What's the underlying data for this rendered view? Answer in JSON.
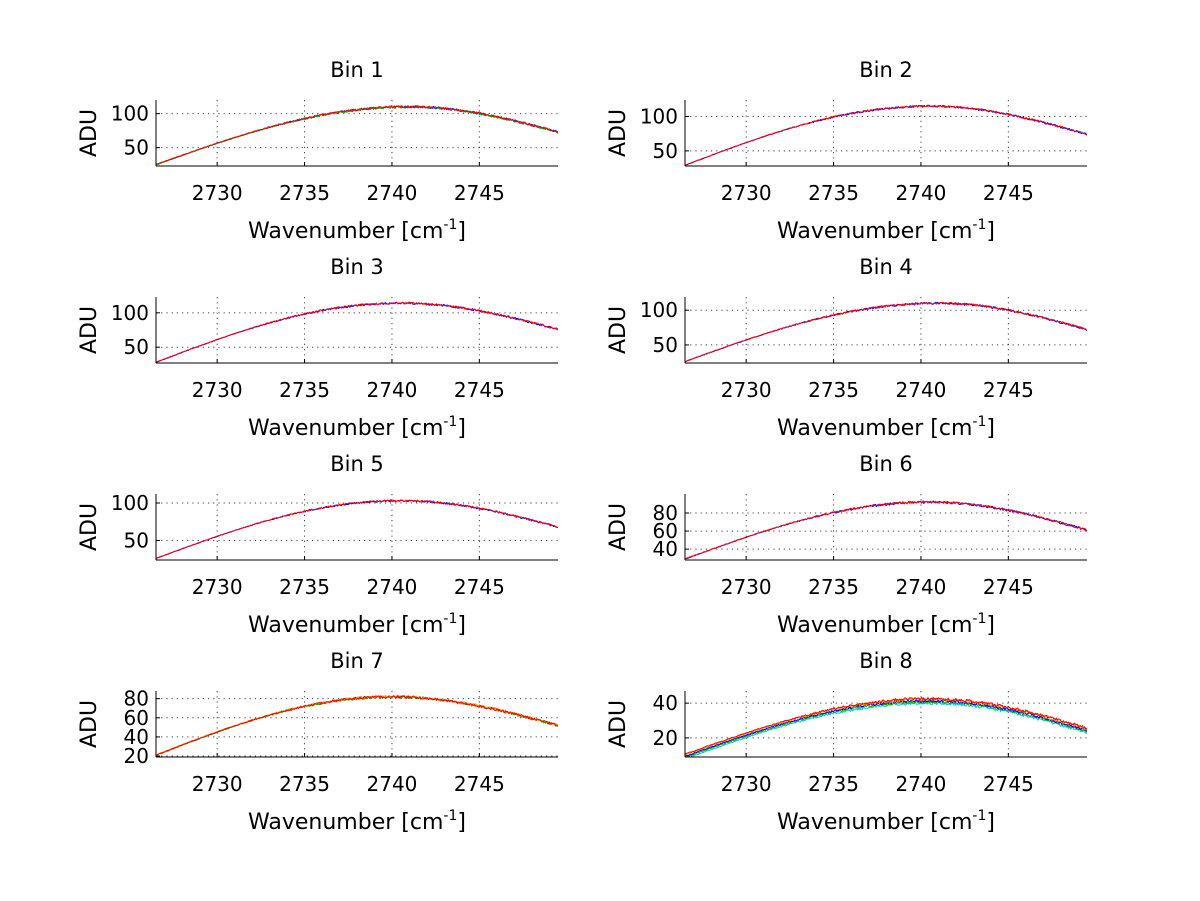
{
  "chart_data": [
    {
      "type": "line",
      "title": "Bin 1",
      "xlabel": "Wavenumber [cm",
      "xlabel_sup": "-1",
      "xlabel_end": "]",
      "ylabel": "ADU",
      "xlim": [
        2726.5,
        2749.5
      ],
      "ylim": [
        23,
        120
      ],
      "xticks": [
        2730,
        2735,
        2740,
        2745
      ],
      "yticks": [
        50,
        100
      ],
      "grid": true,
      "curve": {
        "x0": 2726.5,
        "x_peak": 2741,
        "x1": 2749.5,
        "y0": 25,
        "y_peak": 110,
        "y1": 73,
        "noise": 1.6
      },
      "series": [
        {
          "color": "#0000ff",
          "offset": 0.0
        },
        {
          "color": "#00b000",
          "offset": -0.4
        },
        {
          "color": "#ff0000",
          "offset": 0.2
        }
      ]
    },
    {
      "type": "line",
      "title": "Bin 2",
      "xlabel": "Wavenumber [cm",
      "xlabel_sup": "-1",
      "xlabel_end": "]",
      "ylabel": "ADU",
      "xlim": [
        2726.5,
        2749.5
      ],
      "ylim": [
        28,
        124
      ],
      "xticks": [
        2730,
        2735,
        2740,
        2745
      ],
      "yticks": [
        50,
        100
      ],
      "grid": true,
      "curve": {
        "x0": 2726.5,
        "x_peak": 2740.5,
        "x1": 2749.5,
        "y0": 29,
        "y_peak": 115,
        "y1": 74,
        "noise": 1.4
      },
      "series": [
        {
          "color": "#0000ff",
          "offset": 0.0
        },
        {
          "color": "#ff0000",
          "offset": 0.2
        }
      ]
    },
    {
      "type": "line",
      "title": "Bin 3",
      "xlabel": "Wavenumber [cm",
      "xlabel_sup": "-1",
      "xlabel_end": "]",
      "ylabel": "ADU",
      "xlim": [
        2726.5,
        2749.5
      ],
      "ylim": [
        27,
        123
      ],
      "xticks": [
        2730,
        2735,
        2740,
        2745
      ],
      "yticks": [
        50,
        100
      ],
      "grid": true,
      "curve": {
        "x0": 2726.5,
        "x_peak": 2740.5,
        "x1": 2749.5,
        "y0": 28,
        "y_peak": 114,
        "y1": 76,
        "noise": 1.5
      },
      "series": [
        {
          "color": "#0000ff",
          "offset": 0.0
        },
        {
          "color": "#ff0000",
          "offset": 0.2
        }
      ]
    },
    {
      "type": "line",
      "title": "Bin 4",
      "xlabel": "Wavenumber [cm",
      "xlabel_sup": "-1",
      "xlabel_end": "]",
      "ylabel": "ADU",
      "xlim": [
        2726.5,
        2749.5
      ],
      "ylim": [
        24,
        119
      ],
      "xticks": [
        2730,
        2735,
        2740,
        2745
      ],
      "yticks": [
        50,
        100
      ],
      "grid": true,
      "curve": {
        "x0": 2726.5,
        "x_peak": 2741,
        "x1": 2749.5,
        "y0": 26,
        "y_peak": 110,
        "y1": 72,
        "noise": 1.5
      },
      "series": [
        {
          "color": "#0000ff",
          "offset": 0.0
        },
        {
          "color": "#ff0000",
          "offset": 0.2
        }
      ]
    },
    {
      "type": "line",
      "title": "Bin 5",
      "xlabel": "Wavenumber [cm",
      "xlabel_sup": "-1",
      "xlabel_end": "]",
      "ylabel": "ADU",
      "xlim": [
        2726.5,
        2749.5
      ],
      "ylim": [
        24,
        112
      ],
      "xticks": [
        2730,
        2735,
        2740,
        2745
      ],
      "yticks": [
        50,
        100
      ],
      "grid": true,
      "curve": {
        "x0": 2726.5,
        "x_peak": 2740.5,
        "x1": 2749.5,
        "y0": 26,
        "y_peak": 103,
        "y1": 68,
        "noise": 1.2
      },
      "series": [
        {
          "color": "#0000ff",
          "offset": 0.0
        },
        {
          "color": "#ff0000",
          "offset": 0.2
        }
      ]
    },
    {
      "type": "line",
      "title": "Bin 6",
      "xlabel": "Wavenumber [cm",
      "xlabel_sup": "-1",
      "xlabel_end": "]",
      "ylabel": "ADU",
      "xlim": [
        2726.5,
        2749.5
      ],
      "ylim": [
        28,
        101
      ],
      "xticks": [
        2730,
        2735,
        2740,
        2745
      ],
      "yticks": [
        40,
        60,
        80
      ],
      "grid": true,
      "curve": {
        "x0": 2726.5,
        "x_peak": 2740.5,
        "x1": 2749.5,
        "y0": 29,
        "y_peak": 92,
        "y1": 61,
        "noise": 1.3
      },
      "series": [
        {
          "color": "#0000ff",
          "offset": 0.0
        },
        {
          "color": "#ff0000",
          "offset": 0.2
        }
      ]
    },
    {
      "type": "line",
      "title": "Bin 7",
      "xlabel": "Wavenumber [cm",
      "xlabel_sup": "-1",
      "xlabel_end": "]",
      "ylabel": "ADU",
      "xlim": [
        2726.5,
        2749.5
      ],
      "ylim": [
        19,
        88
      ],
      "xticks": [
        2730,
        2735,
        2740,
        2745
      ],
      "yticks": [
        20,
        40,
        60,
        80
      ],
      "grid": true,
      "curve": {
        "x0": 2726.5,
        "x_peak": 2740,
        "x1": 2749.5,
        "y0": 21,
        "y_peak": 82,
        "y1": 52,
        "noise": 1.3
      },
      "series": [
        {
          "color": "#00b000",
          "offset": -0.3
        },
        {
          "color": "#ff9900",
          "offset": 0.3
        },
        {
          "color": "#ff0000",
          "offset": 0.0
        }
      ]
    },
    {
      "type": "line",
      "title": "Bin 8",
      "xlabel": "Wavenumber [cm",
      "xlabel_sup": "-1",
      "xlabel_end": "]",
      "ylabel": "ADU",
      "xlim": [
        2726.5,
        2749.5
      ],
      "ylim": [
        9,
        47
      ],
      "xticks": [
        2730,
        2735,
        2740,
        2745
      ],
      "yticks": [
        20,
        40
      ],
      "grid": true,
      "curve": {
        "x0": 2726.5,
        "x_peak": 2740.5,
        "x1": 2749.5,
        "y0": 10,
        "y_peak": 42,
        "y1": 25,
        "noise": 0.8
      },
      "series": [
        {
          "color": "#00c8c8",
          "offset": -2.0
        },
        {
          "color": "#00b000",
          "offset": -1.2
        },
        {
          "color": "#0000ff",
          "offset": -0.6
        },
        {
          "color": "#ff9900",
          "offset": 0.2
        },
        {
          "color": "#ff0000",
          "offset": 0.6
        }
      ]
    }
  ]
}
